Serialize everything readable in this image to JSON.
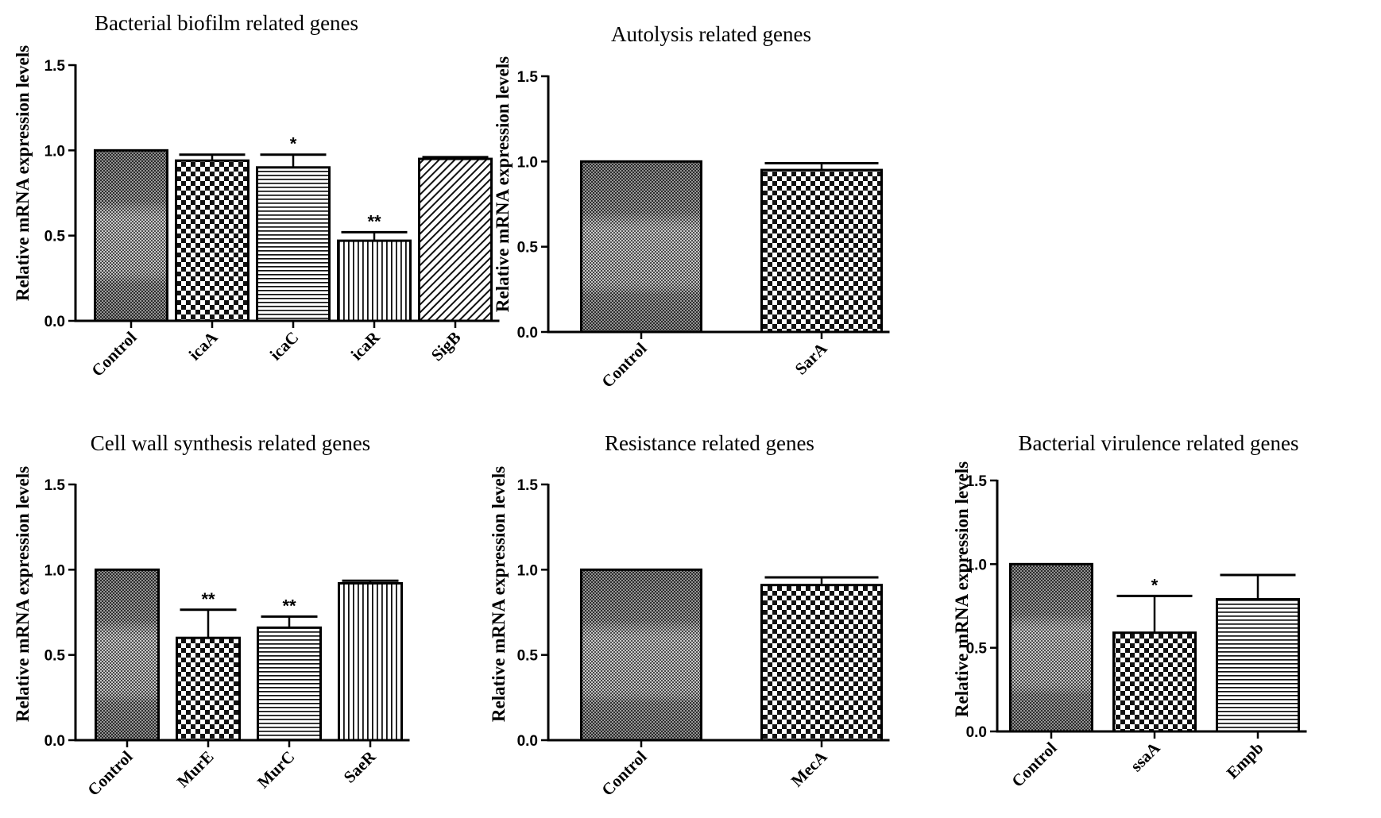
{
  "chart_data": [
    {
      "type": "bar",
      "title": "Bacterial biofilm related genes",
      "ylabel": "Relative mRNA expression levels",
      "xlabel": "",
      "ylim": [
        0,
        1.5
      ],
      "yticks": [
        "0.0",
        "0.5",
        "1.0",
        "1.5"
      ],
      "categories": [
        "Control",
        "icaA",
        "icaC",
        "icaR",
        "SigB"
      ],
      "values": [
        1.0,
        0.94,
        0.9,
        0.47,
        0.95
      ],
      "errors": [
        0.0,
        0.035,
        0.075,
        0.05,
        0.01
      ],
      "significance": [
        "",
        "",
        "*",
        "**",
        ""
      ],
      "patterns": [
        "control",
        "checker",
        "hlines",
        "vlines",
        "diag"
      ]
    },
    {
      "type": "bar",
      "title": "Autolysis related genes",
      "ylabel": "Relative mRNA expression levels",
      "xlabel": "",
      "ylim": [
        0,
        1.5
      ],
      "yticks": [
        "0.0",
        "0.5",
        "1.0",
        "1.5"
      ],
      "categories": [
        "Control",
        "SarA"
      ],
      "values": [
        1.0,
        0.95
      ],
      "errors": [
        0.0,
        0.04
      ],
      "significance": [
        "",
        ""
      ],
      "patterns": [
        "control",
        "checker"
      ]
    },
    {
      "type": "bar",
      "title": "Cell wall synthesis related genes",
      "ylabel": "Relative mRNA expression levels",
      "xlabel": "",
      "ylim": [
        0,
        1.5
      ],
      "yticks": [
        "0.0",
        "0.5",
        "1.0",
        "1.5"
      ],
      "categories": [
        "Control",
        "MurE",
        "MurC",
        "SaeR"
      ],
      "values": [
        1.0,
        0.6,
        0.66,
        0.92
      ],
      "errors": [
        0.0,
        0.165,
        0.065,
        0.015
      ],
      "significance": [
        "",
        "**",
        "**",
        ""
      ],
      "patterns": [
        "control",
        "checker",
        "hlines",
        "vlines"
      ]
    },
    {
      "type": "bar",
      "title": "Resistance related genes",
      "ylabel": "Relative mRNA expression levels",
      "xlabel": "",
      "ylim": [
        0,
        1.5
      ],
      "yticks": [
        "0.0",
        "0.5",
        "1.0",
        "1.5"
      ],
      "categories": [
        "Control",
        "MecA"
      ],
      "values": [
        1.0,
        0.91
      ],
      "errors": [
        0.0,
        0.045
      ],
      "significance": [
        "",
        ""
      ],
      "patterns": [
        "control",
        "checker"
      ]
    },
    {
      "type": "bar",
      "title": "Bacterial virulence related genes",
      "ylabel": "Relative mRNA expression levels",
      "xlabel": "",
      "ylim": [
        0,
        1.5
      ],
      "yticks": [
        "0.0",
        "0.5",
        "1.0",
        "1.5"
      ],
      "categories": [
        "Control",
        "ssaA",
        "Empb"
      ],
      "values": [
        1.0,
        0.59,
        0.79
      ],
      "errors": [
        0.0,
        0.22,
        0.145
      ],
      "significance": [
        "",
        "*",
        ""
      ],
      "patterns": [
        "control",
        "checker",
        "hlines"
      ]
    }
  ]
}
